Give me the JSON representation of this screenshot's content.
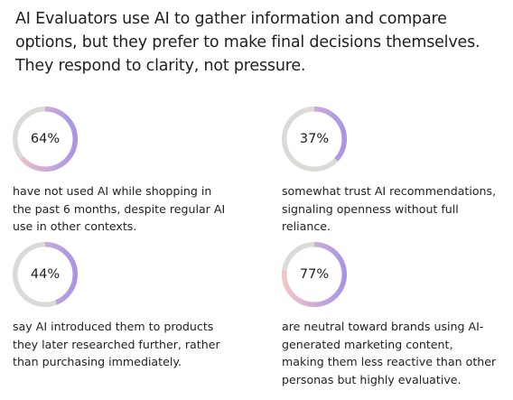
{
  "headline": {
    "lines": [
      "AI Evaluators use AI to gather information and compare",
      "options, but they prefer to make final decisions themselves.",
      "They respond to clarity, not pressure."
    ]
  },
  "stats": [
    {
      "value": 64,
      "label": "64%",
      "lines": [
        "have not used AI while shopping in",
        "the past 6 months, despite regular AI",
        "use in other contexts."
      ]
    },
    {
      "value": 37,
      "label": "37%",
      "lines": [
        "somewhat trust AI recommendations,",
        "signaling openness without full",
        "reliance."
      ]
    },
    {
      "value": 44,
      "label": "44%",
      "lines": [
        "say AI introduced them to products",
        "they later researched further, rather",
        "than purchasing immediately."
      ]
    },
    {
      "value": 77,
      "label": "77%",
      "lines": [
        "are neutral toward brands using AI-",
        "generated marketing content,",
        "making them less reactive than other",
        "personas but highly evaluative."
      ]
    }
  ],
  "colors": {
    "track": "#dcdad6",
    "arc_start": "#f3c4c9",
    "arc_end": "#a894e6"
  }
}
